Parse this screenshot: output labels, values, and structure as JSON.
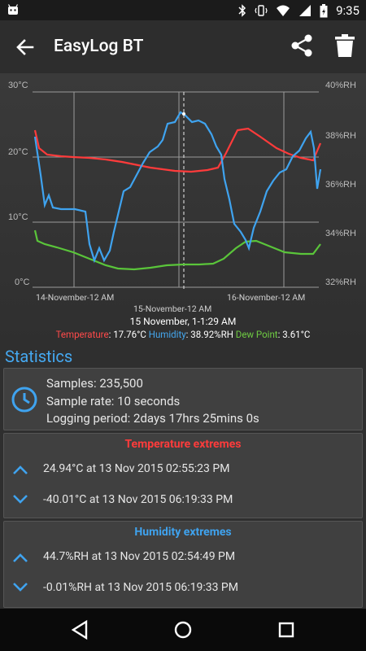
{
  "status_bar": {
    "time": "9:35"
  },
  "app_bar": {
    "title": "EasyLog BT"
  },
  "chart": {
    "y_left_ticks": [
      "30°C",
      "20°C",
      "10°C",
      "0°C"
    ],
    "y_right_ticks": [
      "40%RH",
      "38%RH",
      "36%RH",
      "34%RH",
      "32%RH"
    ],
    "x_ticks_top": [
      "14-November-12 AM",
      "16-November-12 AM"
    ],
    "x_tick_bottom": "15-November-12 AM",
    "cursor_label": "15 November, 1-1:29 AM",
    "legend": {
      "temperature_label": "Temperature",
      "temperature_value": ": 17.76°C",
      "humidity_label": "Humidity",
      "humidity_value": ": 38.92%RH",
      "dewpoint_label": "Dew Point",
      "dewpoint_value": ": 3.61°C"
    },
    "colors": {
      "temperature": "#ff3b3b",
      "humidity": "#3fa3ef",
      "dewpoint": "#5ac53a"
    }
  },
  "chart_data": {
    "type": "line",
    "xlabel": "",
    "ylabel": "",
    "y_left_range": [
      0,
      30
    ],
    "y_left_unit": "°C",
    "y_right_range": [
      32,
      40
    ],
    "y_right_unit": "%RH",
    "x": [
      "13-Nov 12 PM",
      "13-Nov 6 PM",
      "14-Nov 12 AM",
      "14-Nov 6 AM",
      "14-Nov 12 PM",
      "14-Nov 6 PM",
      "15-Nov 12 AM",
      "15-Nov 6 AM",
      "15-Nov 12 PM",
      "15-Nov 6 PM",
      "16-Nov 12 AM",
      "16-Nov 6 AM",
      "16-Nov 12 PM"
    ],
    "series": [
      {
        "name": "Temperature",
        "axis": "left",
        "values": [
          23,
          20,
          19,
          18,
          17.5,
          17.3,
          17,
          17.5,
          24,
          23,
          20,
          18.5,
          21
        ]
      },
      {
        "name": "Humidity",
        "axis": "right",
        "values": [
          37.5,
          35.8,
          34,
          33.2,
          35.5,
          37,
          38.8,
          38.5,
          36,
          33,
          35,
          37.8,
          36.5
        ]
      },
      {
        "name": "Dew Point",
        "axis": "left",
        "values": [
          8,
          5,
          3.5,
          2.5,
          2.5,
          3,
          3.5,
          3.5,
          6.5,
          6,
          5,
          4.5,
          6
        ]
      }
    ],
    "cursor": "15 November, 1-1:29 AM"
  },
  "statistics": {
    "heading": "Statistics",
    "samples": "Samples: 235,500",
    "sample_rate": "Sample rate: 10 seconds",
    "logging_period": "Logging period: 2days 17hrs 25mins 0s"
  },
  "temperature_extremes": {
    "title": "Temperature extremes",
    "max": "24.94°C at 13 Nov 2015 02:55:23 PM",
    "min": "-40.01°C at 13 Nov 2015 06:19:33 PM"
  },
  "humidity_extremes": {
    "title": "Humidity extremes",
    "max": "44.7%RH at 13 Nov 2015 02:54:49 PM",
    "min": "-0.01%RH at 13 Nov 2015 06:19:33 PM"
  }
}
